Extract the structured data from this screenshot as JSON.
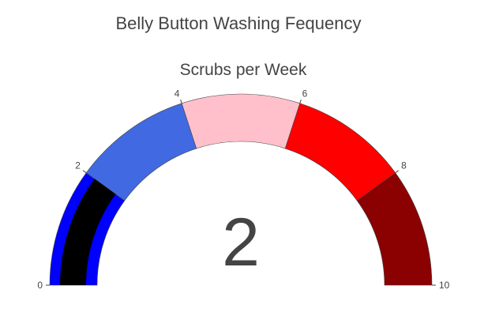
{
  "chart_data": {
    "type": "gauge",
    "title": "Belly Button Washing Fequency",
    "gauge_title": "Scrubs per Week",
    "value": 2,
    "range": [
      0,
      10
    ],
    "ticks": [
      0,
      2,
      4,
      6,
      8,
      10
    ],
    "tick_labels": [
      "0",
      "2",
      "4",
      "6",
      "8",
      "10"
    ],
    "steps": [
      {
        "range": [
          0,
          2
        ],
        "color": "#0000ff"
      },
      {
        "range": [
          2,
          4
        ],
        "color": "#4169e1"
      },
      {
        "range": [
          4,
          6
        ],
        "color": "#ffc0cb"
      },
      {
        "range": [
          6,
          8
        ],
        "color": "#ff0000"
      },
      {
        "range": [
          8,
          10
        ],
        "color": "#8b0000"
      }
    ],
    "bar": {
      "color": "#000000"
    }
  }
}
